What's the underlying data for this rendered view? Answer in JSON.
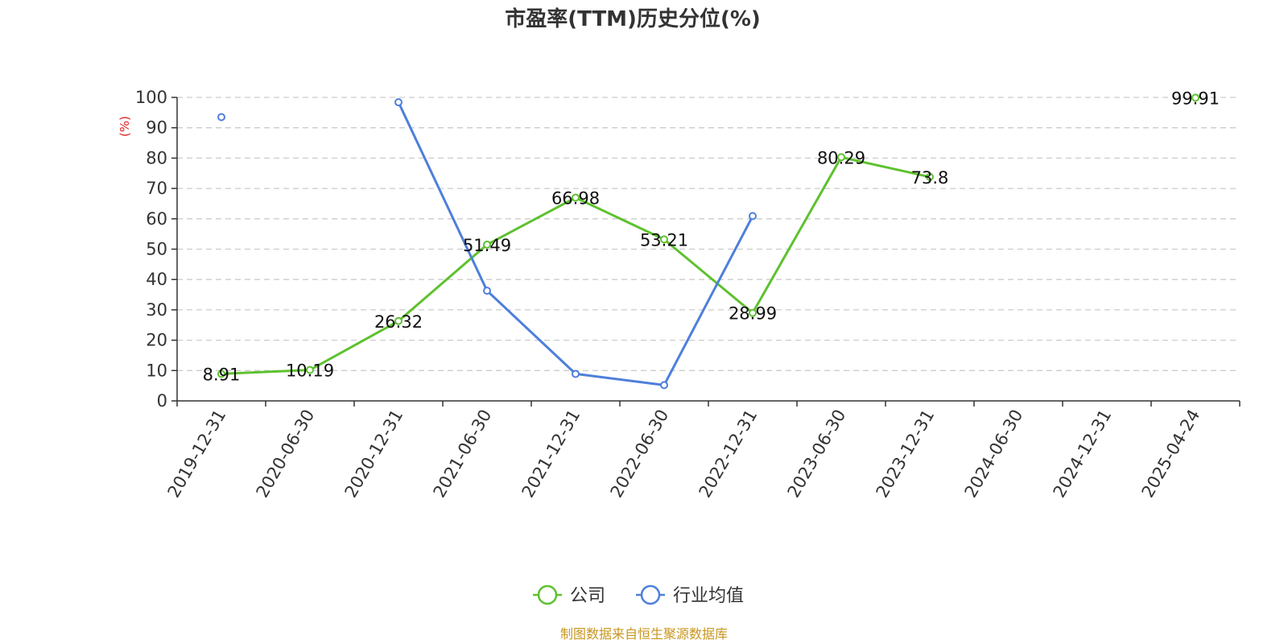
{
  "chart_data": {
    "type": "line",
    "title": "市盈率(TTM)历史分位(%)",
    "ylabel": "(%)",
    "xlabel": "",
    "ylim": [
      0,
      100
    ],
    "yticks": [
      0,
      10,
      20,
      30,
      40,
      50,
      60,
      70,
      80,
      90,
      100
    ],
    "grid": true,
    "legend_position": "bottom-center",
    "categories": [
      "2019-12-31",
      "2020-06-30",
      "2020-12-31",
      "2021-06-30",
      "2021-12-31",
      "2022-06-30",
      "2022-12-31",
      "2023-06-30",
      "2023-12-31",
      "2024-06-30",
      "2024-12-31",
      "2025-04-24"
    ],
    "series": [
      {
        "name": "公司",
        "color": "#5ec12f",
        "show_labels": true,
        "points": [
          {
            "x": "2019-12-31",
            "y": 8.91
          },
          {
            "x": "2020-06-30",
            "y": 10.19
          },
          {
            "x": "2020-12-31",
            "y": 26.32
          },
          {
            "x": "2021-06-30",
            "y": 51.49
          },
          {
            "x": "2021-12-31",
            "y": 66.98
          },
          {
            "x": "2022-06-30",
            "y": 53.21
          },
          {
            "x": "2022-12-31",
            "y": 28.99
          },
          {
            "x": "2023-06-30",
            "y": 80.29
          },
          {
            "x": "2023-12-31",
            "y": 73.8
          },
          {
            "x": "2025-04-24",
            "y": 99.91
          }
        ]
      },
      {
        "name": "行业均值",
        "color": "#4e7fdb",
        "show_labels": false,
        "points": [
          {
            "x": "2019-12-31",
            "y": 93.5
          },
          {
            "x": "2020-12-31",
            "y": 98.4
          },
          {
            "x": "2021-06-30",
            "y": 36.3
          },
          {
            "x": "2021-12-31",
            "y": 8.9
          },
          {
            "x": "2022-06-30",
            "y": 5.2
          },
          {
            "x": "2022-12-31",
            "y": 60.9
          }
        ]
      }
    ],
    "source": "制图数据来自恒生聚源数据库",
    "source_color": "#c8961e",
    "ylabel_color": "#e02020",
    "axis_color": "#333333",
    "grid_color": "#cccccc"
  }
}
